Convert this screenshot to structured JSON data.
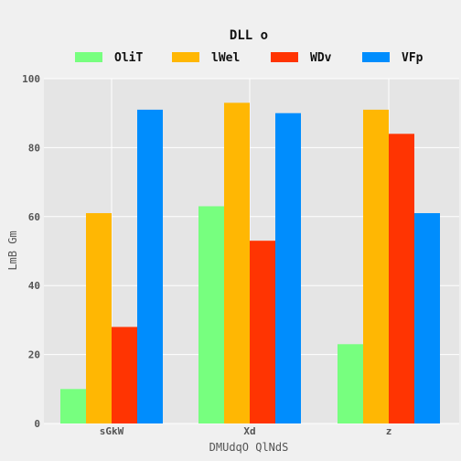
{
  "chart_data": {
    "type": "bar",
    "title": "DLL o",
    "xlabel": "DMUdqO QlNdS",
    "ylabel": "LmB Gm",
    "categories": [
      "sGkW",
      "Xd",
      "z"
    ],
    "series": [
      {
        "name": "OliT",
        "color": "#77ff7f",
        "values": [
          10,
          63,
          23
        ]
      },
      {
        "name": "lWel",
        "color": "#ffb703",
        "values": [
          61,
          93,
          91
        ]
      },
      {
        "name": "WDv",
        "color": "#ff3402",
        "values": [
          28,
          53,
          84
        ]
      },
      {
        "name": "VFp",
        "color": "#008dfd",
        "values": [
          91,
          90,
          61
        ]
      }
    ],
    "ylim": [
      0,
      100
    ],
    "yticks": [
      0,
      20,
      40,
      60,
      80,
      100
    ],
    "grid": true,
    "legend_position": "top"
  }
}
